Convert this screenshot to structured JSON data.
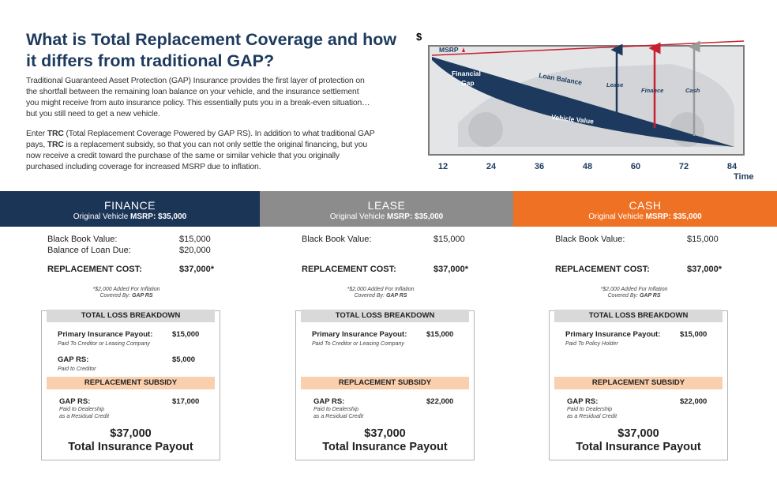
{
  "intro": {
    "title_lines": [
      "What is Total Replacement Coverage and how",
      "it differs from traditional GAP?"
    ],
    "paragraph1": [
      "Traditional Guaranteed Asset Protection (GAP) Insurance provides the first layer of protection on",
      "the shortfall between the remaining loan balance on your vehicle, and the insurance settlement",
      "you might receive from auto insurance policy. This essentially puts you in a break-even situation…",
      "but you still need to get a new vehicle."
    ],
    "paragraph2": [
      [
        {
          "text": "Enter "
        },
        {
          "text": "TRC",
          "bold": true
        },
        {
          "text": " (Total Replacement Coverage Powered by GAP RS). In addition to what traditional GAP"
        }
      ],
      [
        {
          "text": "pays, "
        },
        {
          "text": "TRC",
          "bold": true
        },
        {
          "text": " is a replacement subsidy, so that you can not only settle the original financing, but you"
        }
      ],
      [
        {
          "text": "now receive a credit toward the purchase of the same or similar vehicle that you originally"
        }
      ],
      [
        {
          "text": "purchased including coverage for increased MSRP due to inflation."
        }
      ]
    ]
  },
  "diagram": {
    "y_label": "$",
    "msrp_label": "MSRP",
    "x_label": "Time",
    "x_ticks": [
      "12",
      "24",
      "36",
      "48",
      "60",
      "72",
      "84"
    ],
    "labels": {
      "financial_gap": [
        "Financial",
        "Gap"
      ],
      "loan_balance": "Loan Balance",
      "vehicle_value": "Vehicle Value",
      "lease": "Lease",
      "finance": "Finance",
      "cash": "Cash"
    }
  },
  "columns": [
    {
      "title": "FINANCE",
      "subtitle": "Original Vehicle",
      "msrp": "MSRP: $35,000",
      "color": "#1b3557",
      "rows": [
        {
          "label": "Black Book Value:",
          "value": "$15,000"
        },
        {
          "label": "Balance of Loan Due:",
          "value": "$20,000"
        }
      ],
      "replacement_cost": {
        "label": "REPLACEMENT COST:",
        "value": "$37,000*"
      },
      "footnote": {
        "line1": "*$2,000 Added For Inflation",
        "line2": "Covered By:",
        "line2_bold": "GAP RS"
      },
      "breakdown": {
        "title": "TOTAL LOSS BREAKDOWN",
        "items": [
          {
            "label": "Primary Insurance Payout:",
            "note": [
              "Paid To Creditor or Leasing Company"
            ],
            "value": "$15,000"
          },
          {
            "label": "GAP RS:",
            "note": [
              "Paid to Creditor"
            ],
            "value": "$5,000"
          }
        ]
      },
      "subsidy": {
        "title": "REPLACEMENT SUBSIDY",
        "items": [
          {
            "label": "GAP RS:",
            "note": [
              "Paid to Dealership",
              "as a Residual Credit"
            ],
            "value": "$17,000"
          }
        ]
      },
      "total": {
        "amount": "$37,000",
        "label": "Total Insurance Payout"
      }
    },
    {
      "title": "LEASE",
      "subtitle": "Original Vehicle",
      "msrp": "MSRP: $35,000",
      "color": "#8c8c8c",
      "rows": [
        {
          "label": "Black Book Value:",
          "value": "$15,000"
        }
      ],
      "replacement_cost": {
        "label": "REPLACEMENT COST:",
        "value": "$37,000*"
      },
      "footnote": {
        "line1": "*$2,000 Added For Inflation",
        "line2": "Covered By:",
        "line2_bold": "GAP RS"
      },
      "breakdown": {
        "title": "TOTAL LOSS BREAKDOWN",
        "items": [
          {
            "label": "Primary Insurance Payout:",
            "note": [
              "Paid To Creditor or Leasing Company"
            ],
            "value": "$15,000"
          }
        ]
      },
      "subsidy": {
        "title": "REPLACEMENT SUBSIDY",
        "items": [
          {
            "label": "GAP RS:",
            "note": [
              "Paid to Dealership",
              "as a Residual Credit"
            ],
            "value": "$22,000"
          }
        ]
      },
      "total": {
        "amount": "$37,000",
        "label": "Total Insurance Payout"
      }
    },
    {
      "title": "CASH",
      "subtitle": "Original Vehicle",
      "msrp": "MSRP: $35,000",
      "color": "#ee7124",
      "rows": [
        {
          "label": "Black Book Value:",
          "value": "$15,000"
        }
      ],
      "replacement_cost": {
        "label": "REPLACEMENT COST:",
        "value": "$37,000*"
      },
      "footnote": {
        "line1": "*$2,000 Added For Inflation",
        "line2": "Covered By:",
        "line2_bold": "GAP RS"
      },
      "breakdown": {
        "title": "TOTAL LOSS BREAKDOWN",
        "items": [
          {
            "label": "Primary Insurance Payout:",
            "note": [
              "Paid To Policy Holder"
            ],
            "value": "$15,000"
          }
        ]
      },
      "subsidy": {
        "title": "REPLACEMENT SUBSIDY",
        "items": [
          {
            "label": "GAP RS:",
            "note": [
              "Paid to Dealership",
              "as a Residual Credit"
            ],
            "value": "$22,000"
          }
        ]
      },
      "total": {
        "amount": "$37,000",
        "label": "Total Insurance Payout"
      }
    }
  ]
}
